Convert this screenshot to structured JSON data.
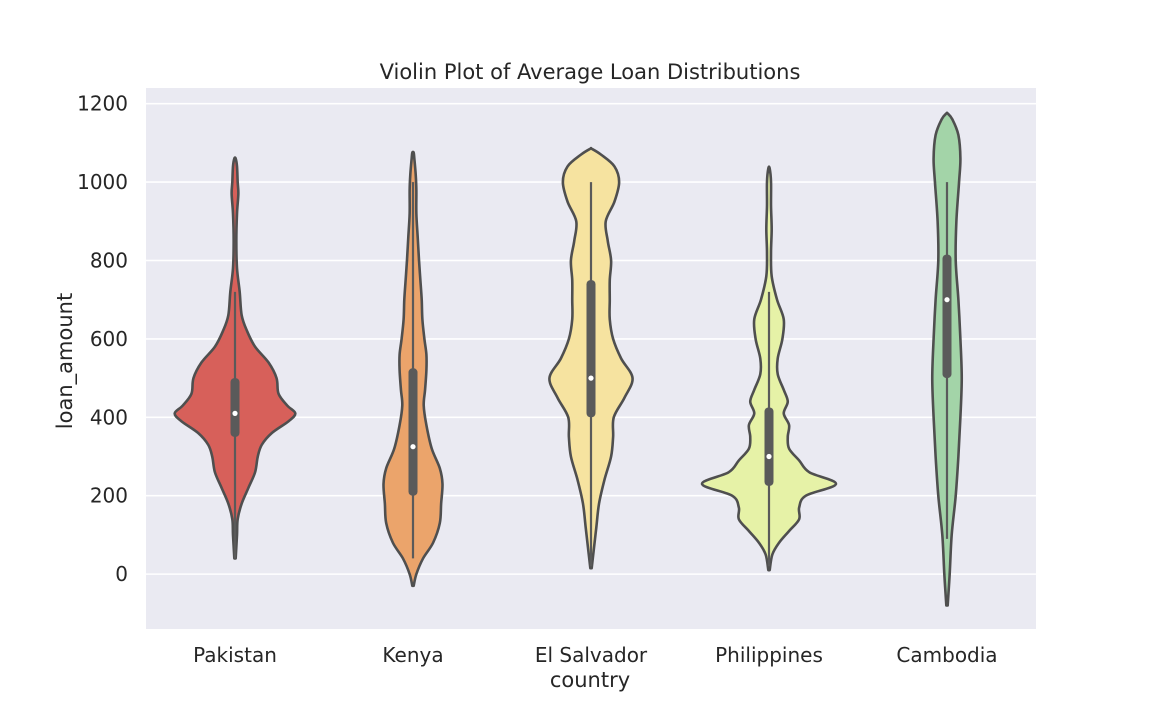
{
  "chart_data": {
    "type": "violin",
    "title": "Violin Plot of Average Loan Distributions",
    "xlabel": "country",
    "ylabel": "loan_amount",
    "ylim": [
      -140,
      1240
    ],
    "yticks": [
      0,
      200,
      400,
      600,
      800,
      1000,
      1200
    ],
    "grid": true,
    "legend": "none",
    "categories": [
      "Pakistan",
      "Kenya",
      "El Salvador",
      "Philippines",
      "Cambodia"
    ],
    "colors": [
      "#d7605a",
      "#eba46b",
      "#f6e3a0",
      "#e6f2a7",
      "#a3d4a8"
    ],
    "outline_color": "#4f4f4f",
    "box_color": "#5a5a5a",
    "background_color": "#eaeaf2",
    "series": [
      {
        "category": "Pakistan",
        "min": 40,
        "q1": 350,
        "median": 410,
        "q3": 500,
        "max": 720,
        "extent": [
          40,
          1060
        ],
        "density": [
          [
            40,
            0.01
          ],
          [
            100,
            0.03
          ],
          [
            140,
            0.04
          ],
          [
            180,
            0.1
          ],
          [
            220,
            0.2
          ],
          [
            260,
            0.3
          ],
          [
            300,
            0.34
          ],
          [
            330,
            0.4
          ],
          [
            360,
            0.55
          ],
          [
            390,
            0.8
          ],
          [
            410,
            0.9
          ],
          [
            430,
            0.78
          ],
          [
            460,
            0.65
          ],
          [
            500,
            0.62
          ],
          [
            540,
            0.5
          ],
          [
            580,
            0.3
          ],
          [
            620,
            0.18
          ],
          [
            660,
            0.1
          ],
          [
            720,
            0.07
          ],
          [
            780,
            0.03
          ],
          [
            850,
            0.02
          ],
          [
            920,
            0.03
          ],
          [
            970,
            0.05
          ],
          [
            1000,
            0.04
          ],
          [
            1040,
            0.03
          ],
          [
            1060,
            0.01
          ]
        ]
      },
      {
        "category": "Kenya",
        "min": 40,
        "q1": 200,
        "median": 325,
        "q3": 525,
        "max": 1000,
        "extent": [
          -30,
          1075
        ],
        "density": [
          [
            -30,
            0.01
          ],
          [
            0,
            0.05
          ],
          [
            40,
            0.15
          ],
          [
            80,
            0.3
          ],
          [
            130,
            0.4
          ],
          [
            180,
            0.42
          ],
          [
            230,
            0.44
          ],
          [
            270,
            0.4
          ],
          [
            320,
            0.28
          ],
          [
            380,
            0.2
          ],
          [
            430,
            0.16
          ],
          [
            470,
            0.18
          ],
          [
            520,
            0.2
          ],
          [
            560,
            0.2
          ],
          [
            600,
            0.17
          ],
          [
            650,
            0.14
          ],
          [
            700,
            0.13
          ],
          [
            750,
            0.11
          ],
          [
            800,
            0.09
          ],
          [
            860,
            0.07
          ],
          [
            920,
            0.05
          ],
          [
            980,
            0.05
          ],
          [
            1020,
            0.04
          ],
          [
            1060,
            0.02
          ],
          [
            1075,
            0.01
          ]
        ]
      },
      {
        "category": "El Salvador",
        "min": 20,
        "q1": 400,
        "median": 500,
        "q3": 750,
        "max": 1000,
        "extent": [
          15,
          1085
        ],
        "density": [
          [
            15,
            0.01
          ],
          [
            60,
            0.04
          ],
          [
            120,
            0.08
          ],
          [
            180,
            0.12
          ],
          [
            240,
            0.2
          ],
          [
            300,
            0.3
          ],
          [
            350,
            0.33
          ],
          [
            400,
            0.34
          ],
          [
            450,
            0.5
          ],
          [
            500,
            0.62
          ],
          [
            550,
            0.45
          ],
          [
            600,
            0.33
          ],
          [
            650,
            0.28
          ],
          [
            700,
            0.28
          ],
          [
            750,
            0.28
          ],
          [
            800,
            0.3
          ],
          [
            850,
            0.25
          ],
          [
            900,
            0.22
          ],
          [
            950,
            0.35
          ],
          [
            1000,
            0.42
          ],
          [
            1040,
            0.35
          ],
          [
            1070,
            0.15
          ],
          [
            1085,
            0.01
          ]
        ]
      },
      {
        "category": "Philippines",
        "min": 20,
        "q1": 225,
        "median": 300,
        "q3": 425,
        "max": 720,
        "extent": [
          10,
          1035
        ],
        "density": [
          [
            10,
            0.01
          ],
          [
            50,
            0.05
          ],
          [
            80,
            0.15
          ],
          [
            110,
            0.3
          ],
          [
            140,
            0.45
          ],
          [
            170,
            0.45
          ],
          [
            200,
            0.55
          ],
          [
            230,
            1.0
          ],
          [
            260,
            0.6
          ],
          [
            290,
            0.45
          ],
          [
            320,
            0.3
          ],
          [
            350,
            0.28
          ],
          [
            380,
            0.3
          ],
          [
            410,
            0.22
          ],
          [
            440,
            0.28
          ],
          [
            470,
            0.22
          ],
          [
            510,
            0.13
          ],
          [
            550,
            0.13
          ],
          [
            600,
            0.2
          ],
          [
            650,
            0.22
          ],
          [
            700,
            0.12
          ],
          [
            760,
            0.04
          ],
          [
            820,
            0.03
          ],
          [
            880,
            0.04
          ],
          [
            940,
            0.03
          ],
          [
            1000,
            0.03
          ],
          [
            1035,
            0.01
          ]
        ]
      },
      {
        "category": "Cambodia",
        "min": 90,
        "q1": 500,
        "median": 700,
        "q3": 815,
        "max": 1000,
        "extent": [
          -80,
          1175
        ],
        "density": [
          [
            -80,
            0.01
          ],
          [
            0,
            0.04
          ],
          [
            100,
            0.07
          ],
          [
            200,
            0.13
          ],
          [
            300,
            0.17
          ],
          [
            400,
            0.2
          ],
          [
            500,
            0.22
          ],
          [
            600,
            0.2
          ],
          [
            700,
            0.17
          ],
          [
            800,
            0.13
          ],
          [
            900,
            0.14
          ],
          [
            1000,
            0.18
          ],
          [
            1060,
            0.2
          ],
          [
            1120,
            0.17
          ],
          [
            1160,
            0.08
          ],
          [
            1175,
            0.01
          ]
        ]
      }
    ]
  }
}
